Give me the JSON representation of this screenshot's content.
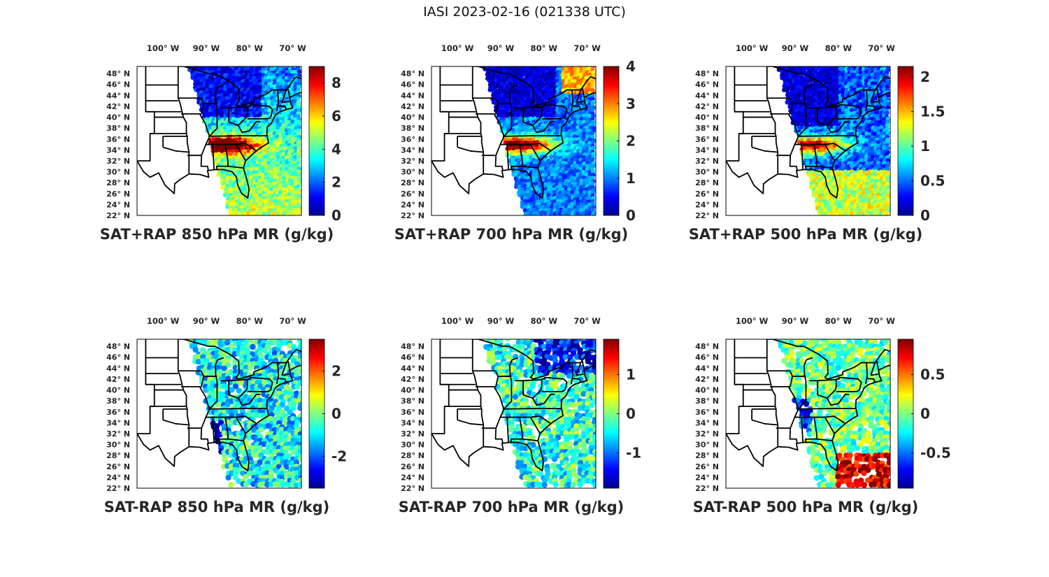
{
  "figure": {
    "title": "IASI 2023-02-16 (021338 UTC)",
    "colormap": [
      "#00008f",
      "#0000ff",
      "#0080ff",
      "#00ffff",
      "#80ff80",
      "#ffff00",
      "#ff8000",
      "#ff0000",
      "#800000"
    ],
    "lon_ticks": [
      "100° W",
      "90° W",
      "80° W",
      "70° W"
    ],
    "lat_ticks": [
      "48° N",
      "46° N",
      "44° N",
      "42° N",
      "40° N",
      "38° N",
      "36° N",
      "34° N",
      "32° N",
      "30° N",
      "28° N",
      "26° N",
      "24° N",
      "22° N"
    ]
  },
  "panels": [
    {
      "title": "SAT+RAP 850 hPa MR (g/kg)",
      "cbar": {
        "min": 0,
        "max": 9,
        "ticks": [
          0,
          2,
          4,
          6,
          8
        ]
      }
    },
    {
      "title": "SAT+RAP 700 hPa MR (g/kg)",
      "cbar": {
        "min": 0,
        "max": 4,
        "ticks": [
          0,
          1,
          2,
          3,
          4
        ]
      }
    },
    {
      "title": "SAT+RAP 500 hPa MR (g/kg)",
      "cbar": {
        "min": 0,
        "max": 2.15,
        "ticks": [
          0,
          0.5,
          1,
          1.5,
          2
        ]
      }
    },
    {
      "title": "SAT-RAP 850 hPa MR (g/kg)",
      "cbar": {
        "min": -3.5,
        "max": 3.5,
        "ticks": [
          -2,
          0,
          2
        ]
      }
    },
    {
      "title": "SAT-RAP 700 hPa MR (g/kg)",
      "cbar": {
        "min": -1.9,
        "max": 1.9,
        "ticks": [
          -1,
          0,
          1
        ]
      }
    },
    {
      "title": "SAT-RAP 500 hPa MR (g/kg)",
      "cbar": {
        "min": -0.95,
        "max": 0.95,
        "ticks": [
          -0.5,
          0,
          0.5
        ]
      }
    }
  ]
}
